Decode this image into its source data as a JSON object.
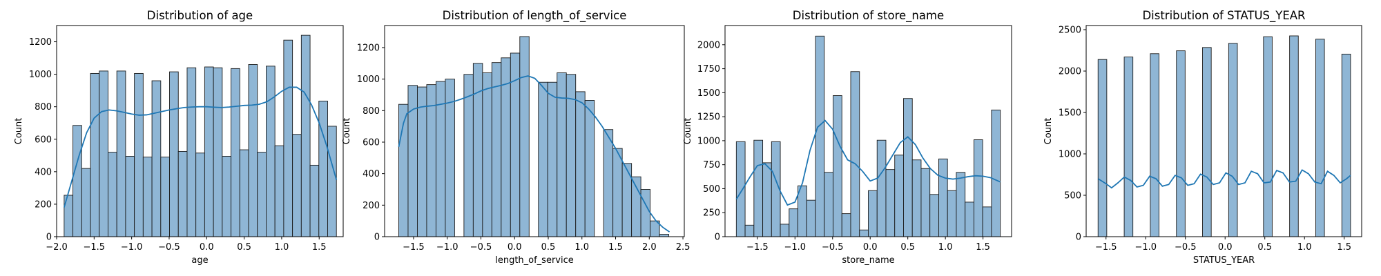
{
  "colors": {
    "bar_fill": "#8fb6d5",
    "bar_edge": "#1a1a1a",
    "kde_line": "#1f77b4",
    "axes": "#000000"
  },
  "chart_data": [
    {
      "type": "bar",
      "title": "Distribution of age",
      "xlabel": "age",
      "ylabel": "Count",
      "xlim": [
        -2.0,
        1.82
      ],
      "ylim": [
        0,
        1300
      ],
      "xticks": [
        -2.0,
        -1.5,
        -1.0,
        -0.5,
        0.0,
        0.5,
        1.0,
        1.5
      ],
      "xtick_labels": [
        "−2.0",
        "−1.5",
        "−1.0",
        "−0.5",
        "0.0",
        "0.5",
        "1.0",
        "1.5"
      ],
      "yticks": [
        0,
        200,
        400,
        600,
        800,
        1000,
        1200
      ],
      "bin_edges_range": [
        -1.9,
        1.73
      ],
      "counts": [
        255,
        685,
        420,
        1005,
        1020,
        520,
        1020,
        495,
        1005,
        490,
        960,
        490,
        1015,
        525,
        1040,
        515,
        1045,
        1040,
        495,
        1035,
        535,
        1060,
        520,
        1050,
        560,
        1210,
        630,
        1240,
        440,
        835,
        680
      ],
      "kde": {
        "x": [
          -1.9,
          -1.8,
          -1.7,
          -1.6,
          -1.5,
          -1.4,
          -1.3,
          -1.2,
          -1.1,
          -1.0,
          -0.9,
          -0.8,
          -0.7,
          -0.6,
          -0.5,
          -0.4,
          -0.3,
          -0.2,
          -0.1,
          0.0,
          0.1,
          0.2,
          0.3,
          0.4,
          0.5,
          0.6,
          0.7,
          0.8,
          0.9,
          1.0,
          1.1,
          1.2,
          1.3,
          1.4,
          1.5,
          1.6,
          1.73
        ],
        "y": [
          180,
          340,
          500,
          640,
          730,
          770,
          780,
          775,
          765,
          755,
          748,
          750,
          760,
          770,
          780,
          788,
          795,
          798,
          800,
          800,
          797,
          795,
          798,
          803,
          808,
          810,
          815,
          830,
          860,
          895,
          920,
          920,
          890,
          810,
          700,
          560,
          350
        ]
      }
    },
    {
      "type": "bar",
      "title": "Distribution of length_of_service",
      "xlabel": "length_of_service",
      "ylabel": "Count",
      "xlim": [
        -1.93,
        2.52
      ],
      "ylim": [
        0,
        1340
      ],
      "xticks": [
        -1.5,
        -1.0,
        -0.5,
        0.0,
        0.5,
        1.0,
        1.5,
        2.0,
        2.5
      ],
      "xtick_labels": [
        "−1.5",
        "−1.0",
        "−0.5",
        "0.0",
        "0.5",
        "1.0",
        "1.5",
        "2.0",
        "2.5"
      ],
      "yticks": [
        0,
        200,
        400,
        600,
        800,
        1000,
        1200
      ],
      "bin_edges_range": [
        -1.72,
        2.29
      ],
      "counts": [
        840,
        960,
        950,
        965,
        985,
        1000,
        0,
        1030,
        1100,
        1040,
        1105,
        1135,
        1165,
        1270,
        0,
        980,
        980,
        1040,
        1030,
        920,
        865,
        0,
        680,
        560,
        465,
        380,
        300,
        100,
        15
      ],
      "kde": {
        "x": [
          -1.72,
          -1.65,
          -1.6,
          -1.5,
          -1.4,
          -1.3,
          -1.2,
          -1.1,
          -1.0,
          -0.9,
          -0.8,
          -0.7,
          -0.6,
          -0.5,
          -0.4,
          -0.3,
          -0.2,
          -0.1,
          0.0,
          0.1,
          0.2,
          0.3,
          0.4,
          0.5,
          0.6,
          0.7,
          0.8,
          0.9,
          1.0,
          1.1,
          1.2,
          1.3,
          1.4,
          1.5,
          1.6,
          1.7,
          1.8,
          1.9,
          2.0,
          2.1,
          2.2,
          2.3
        ],
        "y": [
          570,
          720,
          780,
          810,
          822,
          828,
          832,
          840,
          848,
          858,
          872,
          888,
          905,
          925,
          940,
          950,
          960,
          972,
          990,
          1010,
          1020,
          1005,
          960,
          910,
          885,
          880,
          878,
          870,
          850,
          810,
          760,
          700,
          630,
          560,
          480,
          400,
          320,
          240,
          160,
          100,
          60,
          30
        ]
      }
    },
    {
      "type": "bar",
      "title": "Distribution of store_name",
      "xlabel": "store_name",
      "ylabel": "Count",
      "xlim": [
        -1.93,
        1.88
      ],
      "ylim": [
        0,
        2200
      ],
      "xticks": [
        -1.5,
        -1.0,
        -0.5,
        0.0,
        0.5,
        1.0,
        1.5
      ],
      "xtick_labels": [
        "−1.5",
        "−1.0",
        "−0.5",
        "0.0",
        "0.5",
        "1.0",
        "1.5"
      ],
      "yticks": [
        0,
        250,
        500,
        750,
        1000,
        1250,
        1500,
        1750,
        2000
      ],
      "bin_edges_range": [
        -1.78,
        1.73
      ],
      "counts": [
        990,
        120,
        1005,
        770,
        990,
        130,
        290,
        530,
        380,
        2090,
        670,
        1470,
        240,
        1720,
        70,
        480,
        1005,
        700,
        850,
        1440,
        800,
        710,
        440,
        810,
        480,
        670,
        360,
        1010,
        310,
        1320
      ],
      "kde": {
        "x": [
          -1.78,
          -1.7,
          -1.6,
          -1.5,
          -1.4,
          -1.3,
          -1.2,
          -1.1,
          -1.0,
          -0.9,
          -0.8,
          -0.7,
          -0.6,
          -0.5,
          -0.4,
          -0.3,
          -0.2,
          -0.1,
          0.0,
          0.1,
          0.2,
          0.3,
          0.4,
          0.5,
          0.6,
          0.7,
          0.8,
          0.9,
          1.0,
          1.1,
          1.2,
          1.3,
          1.4,
          1.5,
          1.6,
          1.73
        ],
        "y": [
          390,
          490,
          620,
          740,
          760,
          680,
          480,
          330,
          360,
          560,
          900,
          1140,
          1210,
          1120,
          940,
          800,
          760,
          680,
          580,
          610,
          720,
          850,
          980,
          1040,
          960,
          820,
          710,
          640,
          610,
          600,
          610,
          625,
          635,
          630,
          615,
          570
        ]
      }
    },
    {
      "type": "bar",
      "title": "Distribution of STATUS_YEAR",
      "xlabel": "STATUS_YEAR",
      "ylabel": "Count",
      "xlim": [
        -1.75,
        1.72
      ],
      "ylim": [
        0,
        2550
      ],
      "xticks": [
        -1.5,
        -1.0,
        -0.5,
        0.0,
        0.5,
        1.0,
        1.5
      ],
      "xtick_labels": [
        "−1.5",
        "−1.0",
        "−0.5",
        "0.0",
        "0.5",
        "1.0",
        "1.5"
      ],
      "yticks": [
        0,
        500,
        1000,
        1500,
        2000,
        2500
      ],
      "bin_edges_range": [
        -1.6,
        1.58
      ],
      "counts": [
        2140,
        0,
        0,
        2170,
        0,
        0,
        2210,
        0,
        0,
        2245,
        0,
        0,
        2285,
        0,
        0,
        2335,
        0,
        0,
        0,
        2415,
        0,
        0,
        2425,
        0,
        0,
        2385,
        0,
        0,
        2205
      ],
      "kde": {
        "x": [
          -1.6,
          -1.5,
          -1.43,
          -1.35,
          -1.27,
          -1.19,
          -1.11,
          -1.03,
          -0.95,
          -0.87,
          -0.79,
          -0.71,
          -0.63,
          -0.55,
          -0.47,
          -0.39,
          -0.31,
          -0.23,
          -0.15,
          -0.07,
          0.01,
          0.09,
          0.17,
          0.25,
          0.33,
          0.41,
          0.49,
          0.57,
          0.65,
          0.73,
          0.81,
          0.89,
          0.97,
          1.05,
          1.13,
          1.21,
          1.29,
          1.37,
          1.45,
          1.53,
          1.58
        ],
        "y": [
          700,
          640,
          590,
          650,
          720,
          680,
          600,
          620,
          730,
          700,
          610,
          630,
          740,
          710,
          620,
          640,
          755,
          720,
          630,
          650,
          770,
          730,
          630,
          650,
          790,
          760,
          650,
          660,
          800,
          770,
          660,
          670,
          805,
          760,
          660,
          640,
          790,
          740,
          650,
          700,
          740
        ]
      }
    }
  ]
}
